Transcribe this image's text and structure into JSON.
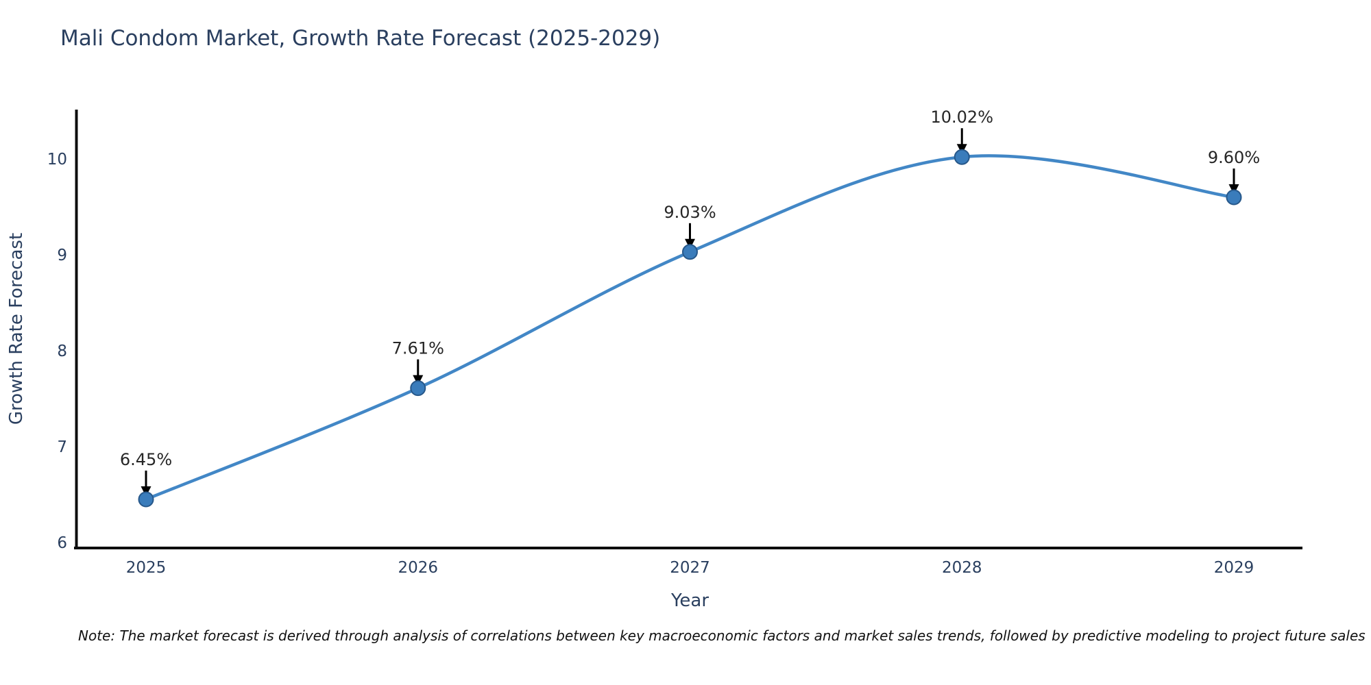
{
  "chart_data": {
    "type": "line",
    "title": "Mali Condom Market, Growth Rate Forecast (2025-2029)",
    "xlabel": "Year",
    "ylabel": "Growth Rate Forecast",
    "x": [
      2025,
      2026,
      2027,
      2028,
      2029
    ],
    "series": [
      {
        "name": "Growth Rate Forecast",
        "values": [
          6.45,
          7.61,
          9.03,
          10.02,
          9.6
        ],
        "point_labels": [
          "6.45%",
          "7.61%",
          "9.03%",
          "10.02%",
          "9.60%"
        ]
      }
    ],
    "yticks": [
      6,
      7,
      8,
      9,
      10
    ],
    "ylim": [
      6,
      10.5
    ],
    "grid": false,
    "legend": false,
    "line_style": "spline",
    "colors": {
      "line": "#4287c6",
      "marker_fill": "#3a7cbb",
      "marker_edge": "#27588a",
      "axis_line": "#0d0d0d",
      "axis_text": "#2a3f5f",
      "annotation_text": "#262626",
      "annotation_arrow": "#000000"
    }
  },
  "note": "Note: The market forecast is derived through analysis of correlations between key macroeconomic factors and market sales trends, followed by predictive modeling to project future sales"
}
